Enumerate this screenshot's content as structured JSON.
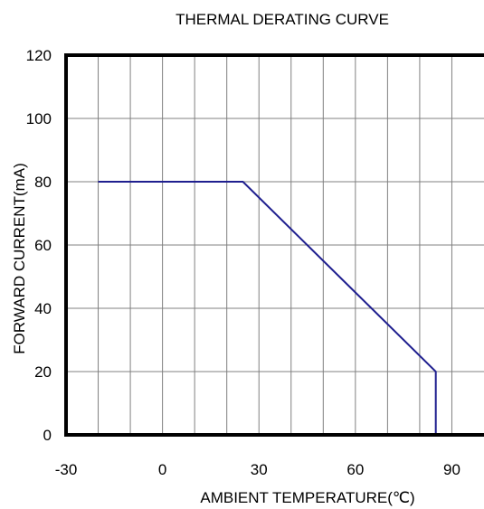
{
  "chart_data": {
    "type": "line",
    "title": "THERMAL DERATING CURVE",
    "xlabel": "AMBIENT TEMPERATURE(℃)",
    "ylabel": "FORWARD CURRENT(mA)",
    "xlim": [
      -30,
      100
    ],
    "ylim": [
      0,
      120
    ],
    "x_ticks": [
      -30,
      0,
      30,
      60,
      90
    ],
    "x_tick_labels": [
      "-30",
      "0",
      "30",
      "60",
      "90"
    ],
    "y_ticks": [
      0,
      20,
      40,
      60,
      80,
      100,
      120
    ],
    "y_tick_labels": [
      "0",
      "20",
      "40",
      "60",
      "80",
      "100",
      "120"
    ],
    "x_grid_step": 10,
    "y_grid_step": 20,
    "grid": true,
    "series": [
      {
        "color": "#1f1f8f",
        "points": [
          [
            -20,
            80
          ],
          [
            25,
            80
          ],
          [
            85,
            20
          ],
          [
            85,
            0
          ],
          [
            100,
            0
          ]
        ]
      }
    ]
  }
}
